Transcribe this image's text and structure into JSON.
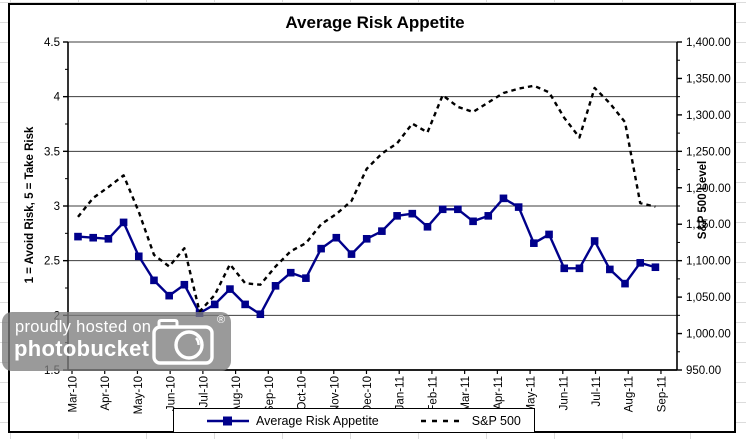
{
  "watermark": {
    "line1": "proudly hosted on",
    "line2": "photobucket",
    "registered": "®"
  },
  "chart_data": {
    "type": "line",
    "title": "Average Risk Appetite",
    "grid": "horizontal",
    "legend_position": "bottom",
    "frequency": "semi-monthly (2 samples per month tick)",
    "x_ticks": [
      "Mar-10",
      "Apr-10",
      "May-10",
      "Jun-10",
      "Jul-10",
      "Aug-10",
      "Sep-10",
      "Oct-10",
      "Nov-10",
      "Dec-10",
      "Jan-11",
      "Feb-11",
      "Mar-11",
      "Apr-11",
      "May-11",
      "Jun-11",
      "Jul-11",
      "Aug-11",
      "Sep-11"
    ],
    "y_left": {
      "label": "1 = Avoid Risk, 5 = Take Risk",
      "min": 1.5,
      "max": 4.5,
      "step": 0.5,
      "ticks": [
        "4.5",
        "4",
        "3.5",
        "3",
        "2.5",
        "2",
        "1.5"
      ]
    },
    "y_right": {
      "label": "S&P 500 Level",
      "min": 950,
      "max": 1400,
      "step": 50,
      "ticks": [
        "1,400.00",
        "1,350.00",
        "1,300.00",
        "1,250.00",
        "1,200.00",
        "1,150.00",
        "1,100.00",
        "1,050.00",
        "1,000.00",
        "950.00"
      ]
    },
    "series": [
      {
        "name": "Average Risk Appetite",
        "axis": "left",
        "color": "#00008B",
        "style": "solid",
        "marker": "square",
        "values": [
          2.72,
          2.71,
          2.7,
          2.85,
          2.54,
          2.32,
          2.18,
          2.28,
          2.02,
          2.1,
          2.24,
          2.1,
          2.01,
          2.27,
          2.39,
          2.34,
          2.61,
          2.71,
          2.56,
          2.7,
          2.77,
          2.91,
          2.93,
          2.81,
          2.97,
          2.97,
          2.86,
          2.91,
          3.07,
          2.99,
          2.66,
          2.74,
          2.43,
          2.43,
          2.68,
          2.42,
          2.29,
          2.48,
          2.44
        ]
      },
      {
        "name": "S&P 500",
        "axis": "right",
        "color": "#000000",
        "style": "dashed",
        "marker": "none",
        "values": [
          1160,
          1186,
          1201,
          1217,
          1167,
          1108,
          1092,
          1117,
          1030,
          1053,
          1095,
          1069,
          1067,
          1092,
          1113,
          1124,
          1150,
          1164,
          1182,
          1226,
          1247,
          1261,
          1288,
          1276,
          1327,
          1311,
          1304,
          1317,
          1330,
          1336,
          1340,
          1331,
          1296,
          1269,
          1337,
          1316,
          1290,
          1179,
          1174
        ]
      }
    ]
  }
}
